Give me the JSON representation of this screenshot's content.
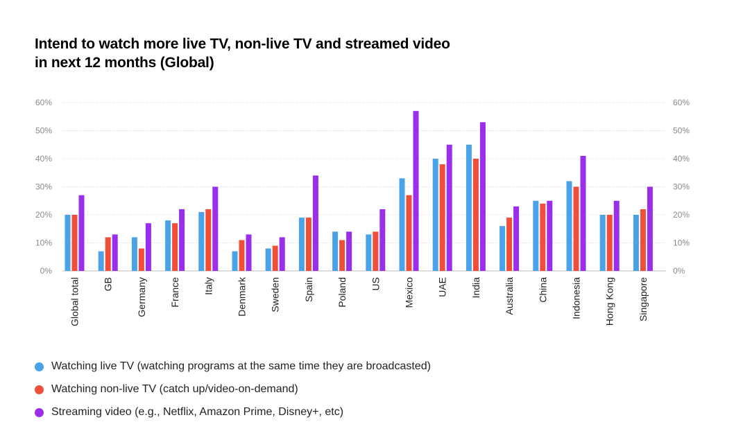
{
  "title_line1": "Intend to watch more live TV, non-live TV and streamed video",
  "title_line2": "in next 12 months (Global)",
  "chart_data": {
    "type": "bar",
    "title": "Intend to watch more live TV, non-live TV and streamed video in next 12 months (Global)",
    "ylim": [
      0,
      60
    ],
    "yticks": [
      "0%",
      "10%",
      "20%",
      "30%",
      "40%",
      "50%",
      "60%"
    ],
    "ytick_values": [
      0,
      10,
      20,
      30,
      40,
      50,
      60
    ],
    "grid": true,
    "legend_position": "bottom-left",
    "categories": [
      "Global total",
      "GB",
      "Germany",
      "France",
      "Italy",
      "Denmark",
      "Sweden",
      "Spain",
      "Poland",
      "US",
      "Mexico",
      "UAE",
      "India",
      "Australia",
      "China",
      "Indonesia",
      "Hong Kong",
      "Singapore"
    ],
    "series": [
      {
        "name": "Watching live TV (watching programs at the same time they are broadcasted)",
        "color": "#4aa3e8",
        "values": [
          20,
          7,
          12,
          18,
          21,
          7,
          8,
          19,
          14,
          13,
          33,
          40,
          45,
          16,
          25,
          32,
          20,
          20
        ]
      },
      {
        "name": "Watching non-live TV (catch up/video-on-demand)",
        "color": "#ef4e3a",
        "values": [
          20,
          12,
          8,
          17,
          22,
          11,
          9,
          19,
          11,
          14,
          27,
          38,
          40,
          19,
          24,
          30,
          20,
          22
        ]
      },
      {
        "name": "Streaming video (e.g., Netflix, Amazon Prime, Disney+, etc)",
        "color": "#9b2ee8",
        "values": [
          27,
          13,
          17,
          22,
          30,
          13,
          12,
          34,
          14,
          22,
          57,
          45,
          53,
          23,
          25,
          41,
          25,
          30
        ]
      }
    ]
  }
}
